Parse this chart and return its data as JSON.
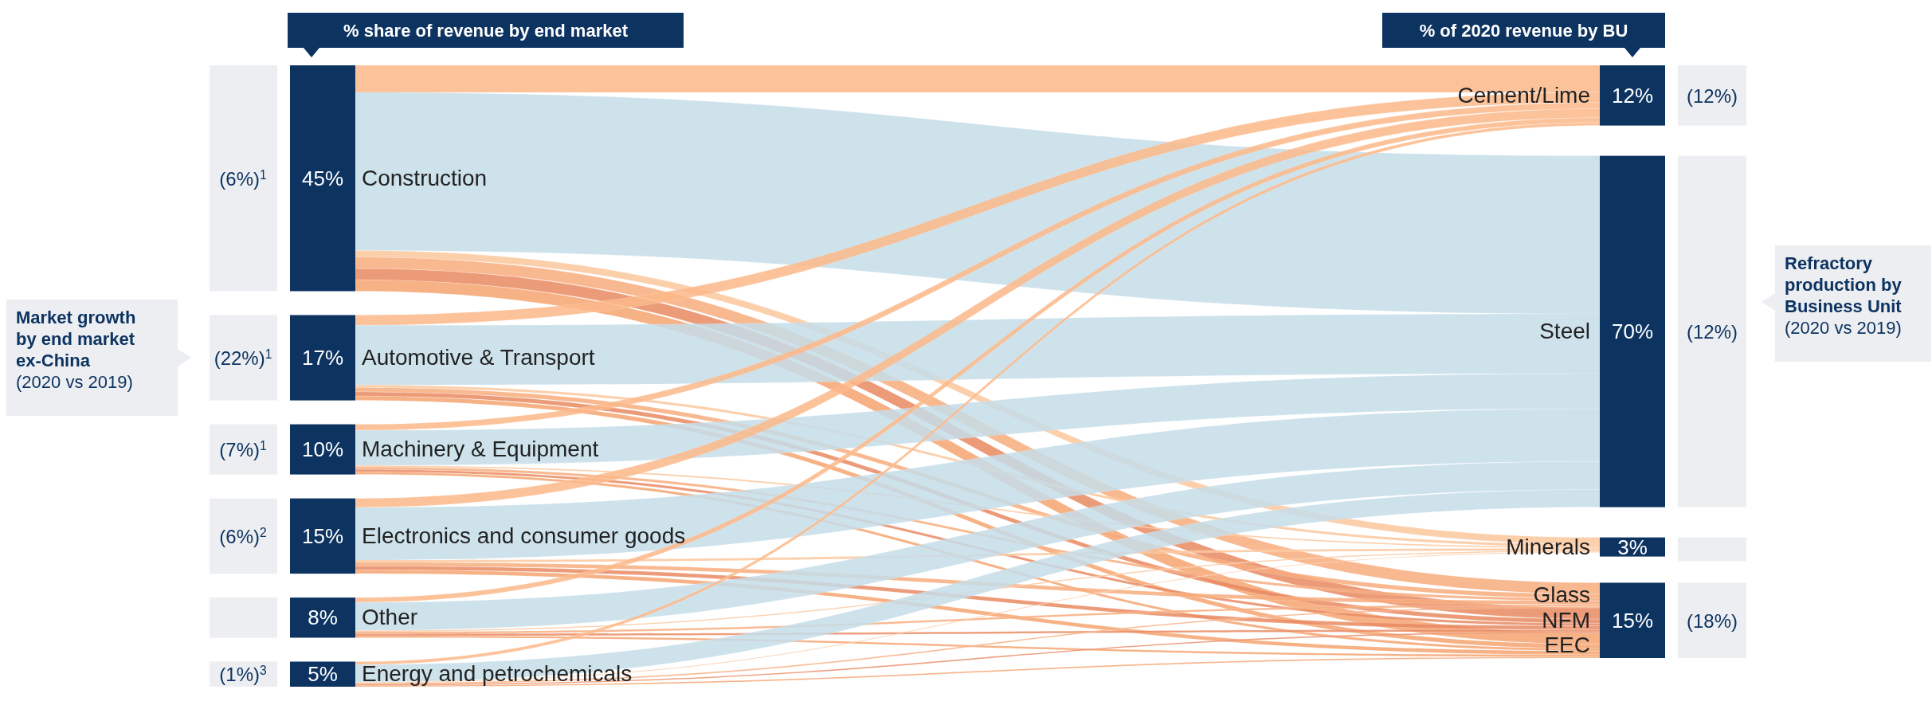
{
  "chart_data": [
    {
      "type": "other",
      "title": "% share of revenue by end market",
      "categories": [
        "Construction",
        "Automotive & Transport",
        "Machinery & Equipment",
        "Electronics and consumer goods",
        "Other",
        "Energy and petrochemicals"
      ],
      "values": [
        45,
        17,
        10,
        15,
        8,
        5
      ],
      "value_labels": [
        "45%",
        "17%",
        "10%",
        "15%",
        "8%",
        "5%"
      ],
      "color": "#0d3361",
      "annotations": [
        "Market growth by end market ex-China",
        "(2020 vs 2019)",
        "(6%)$^{1}$",
        "(22%)$^{1}$",
        "(7%)$^{1}$",
        "(6%)$^{2}$",
        null,
        "(1%)$^{3}$"
      ]
    },
    {
      "type": "other",
      "title": "% of 2020 revenue by BU",
      "categories": [
        "Cement/Lime",
        "Steel",
        "Minerals",
        "Glass",
        "NFM",
        "EEC"
      ],
      "values": [
        12,
        70,
        3,
        15,
        null,
        null
      ],
      "value_labels": [
        "12%",
        "70%",
        "3%",
        "15%",
        null,
        null
      ],
      "color": "#0d3361",
      "annotations": [
        "Refractory production by Business Unit",
        "(2020 vs 2019)",
        "(12%)",
        "(12%)",
        null,
        "(18%)"
      ]
    }
  ]
}
